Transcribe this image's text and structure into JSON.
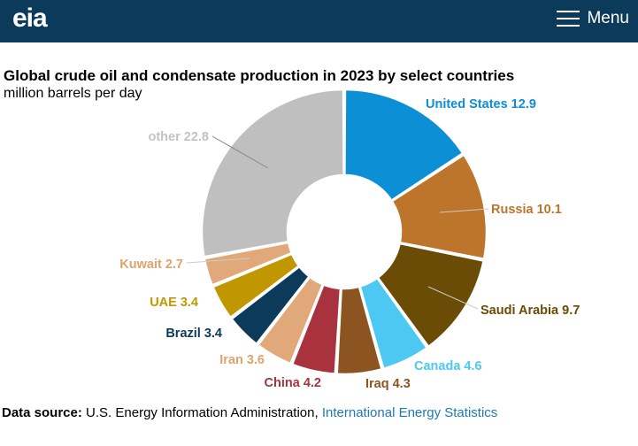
{
  "header": {
    "logo_text": "eia",
    "menu_label": "Menu",
    "background": "#0b3a5b"
  },
  "chart_data": {
    "type": "pie",
    "title": "Global crude oil and condensate production in 2023 by select countries",
    "subtitle": "million barrels per day",
    "donut": true,
    "slices": [
      {
        "label": "United States",
        "value": 12.9,
        "color": "#0d8fd6"
      },
      {
        "label": "Russia",
        "value": 10.1,
        "color": "#bd742b"
      },
      {
        "label": "Saudi Arabia",
        "value": 9.7,
        "color": "#6b4c06"
      },
      {
        "label": "Canada",
        "value": 4.6,
        "color": "#4dc8f2"
      },
      {
        "label": "Iraq",
        "value": 4.3,
        "color": "#8c5420"
      },
      {
        "label": "China",
        "value": 4.2,
        "color": "#a8323e"
      },
      {
        "label": "Iran",
        "value": 3.6,
        "color": "#e1a979"
      },
      {
        "label": "Brazil",
        "value": 3.4,
        "color": "#0b3a5b"
      },
      {
        "label": "UAE",
        "value": 3.4,
        "color": "#c19700"
      },
      {
        "label": "Kuwait",
        "value": 2.7,
        "color": "#e1a979"
      },
      {
        "label": "other",
        "value": 22.8,
        "color": "#bfbfbf"
      }
    ]
  },
  "source": {
    "label": "Data source:",
    "text": "U.S. Energy Information Administration,",
    "link": "International Energy Statistics"
  }
}
